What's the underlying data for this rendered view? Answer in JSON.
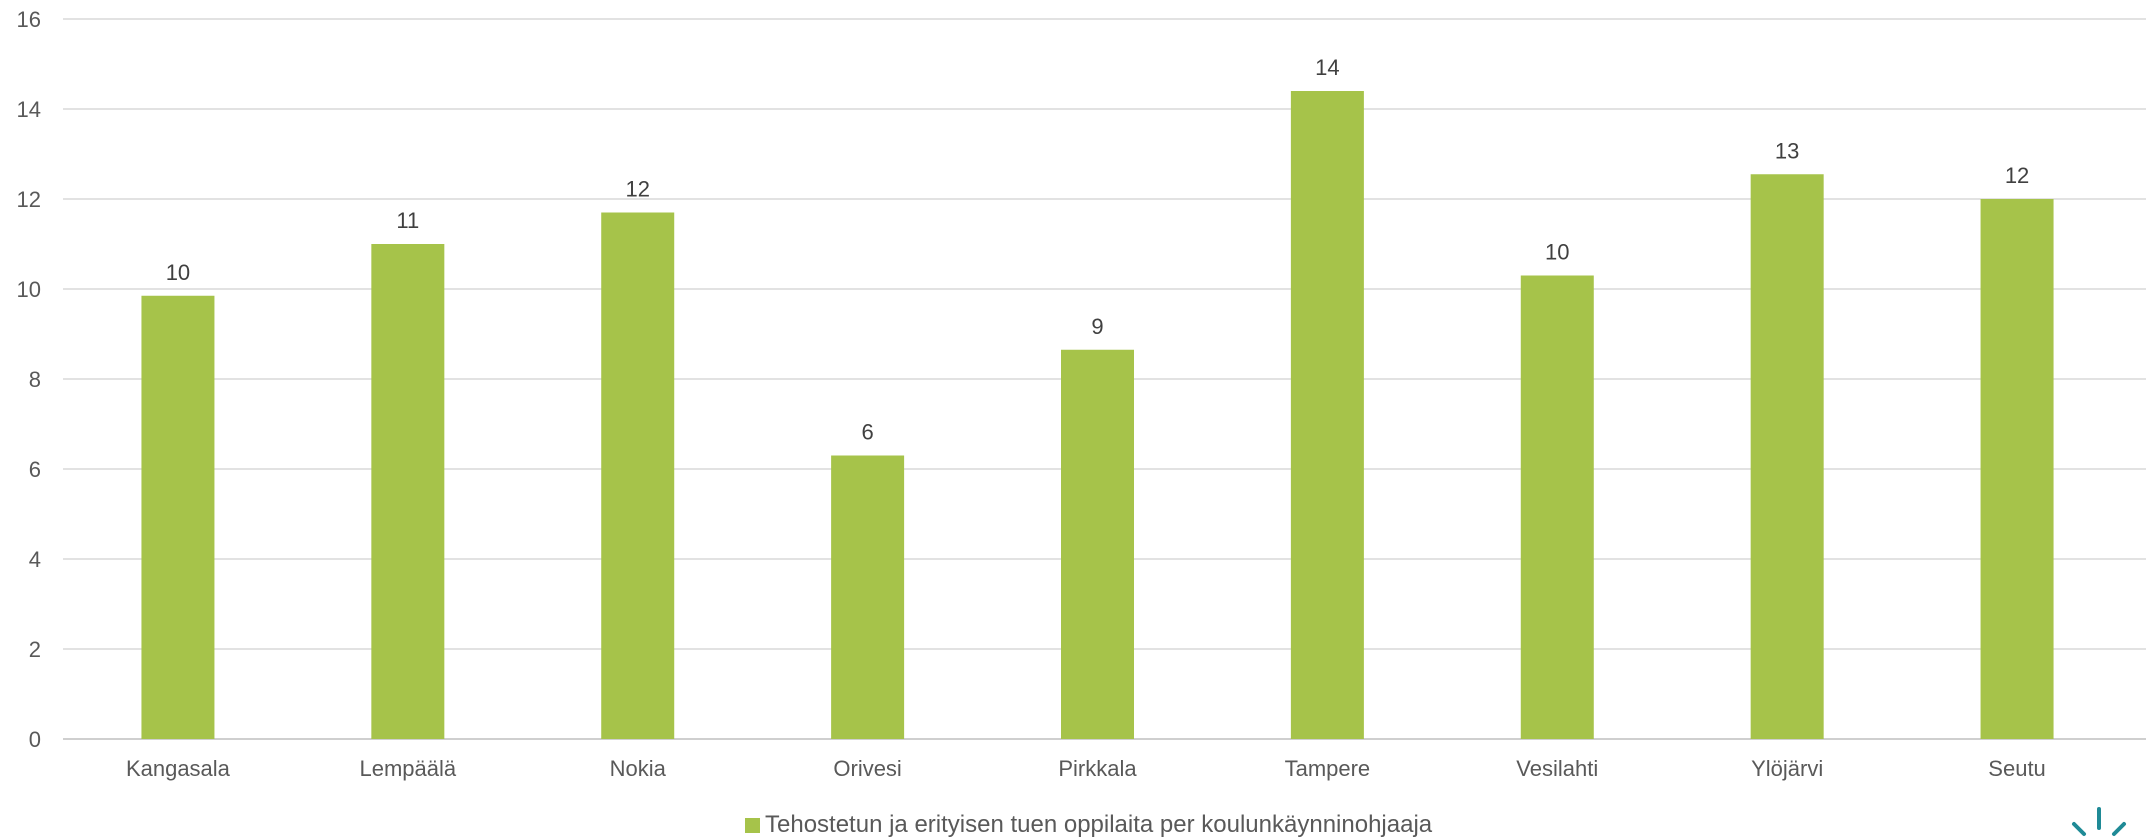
{
  "colors": {
    "bar": "#a6c34a",
    "grid": "#d9d9d9",
    "axis": "#bfbfbf",
    "logo": "#1f8a96"
  },
  "chart_data": {
    "type": "bar",
    "categories": [
      "Kangasala",
      "Lempäälä",
      "Nokia",
      "Orivesi",
      "Pirkkala",
      "Tampere",
      "Vesilahti",
      "Ylöjärvi",
      "Seutu"
    ],
    "series": [
      {
        "name": "Tehostetun ja erityisen tuen oppilaita per koulunkäynninohjaaja",
        "values": [
          9.85,
          11.0,
          11.7,
          6.3,
          8.65,
          14.4,
          10.3,
          12.55,
          12.0
        ],
        "data_labels": [
          "10",
          "11",
          "12",
          "6",
          "9",
          "14",
          "10",
          "13",
          "12"
        ]
      }
    ],
    "ylim": [
      0,
      16
    ],
    "yticks": [
      0,
      2,
      4,
      6,
      8,
      10,
      12,
      14,
      16
    ],
    "grid": true,
    "legend_position": "bottom",
    "title": "",
    "xlabel": "",
    "ylabel": ""
  },
  "logo": {
    "icon": "sun-rays-logo-icon"
  }
}
